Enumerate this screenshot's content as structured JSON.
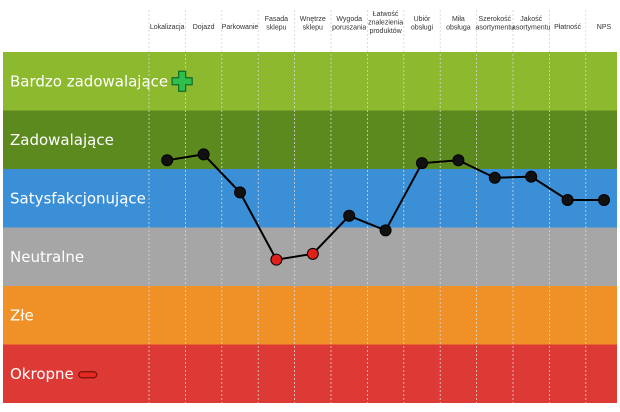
{
  "chart_data": {
    "type": "line",
    "columns": [
      [
        "Lokalizacja"
      ],
      [
        "Dojazd"
      ],
      [
        "Parkowanie"
      ],
      [
        "Fasada",
        "sklepu"
      ],
      [
        "Wnętrze",
        "sklepu"
      ],
      [
        "Wygoda",
        "poruszania"
      ],
      [
        "Łatwość",
        "znalezienia",
        "produktów"
      ],
      [
        "Ubiór",
        "obsługi"
      ],
      [
        "Miła",
        "obsługa"
      ],
      [
        "Szerokość",
        "asortymentu"
      ],
      [
        "Jakość",
        "asortymentu"
      ],
      [
        "Płatność"
      ],
      [
        "NPS"
      ]
    ],
    "bands": [
      {
        "label": "Bardzo zadowalające",
        "color": "#8db92e"
      },
      {
        "label": "Zadowalające",
        "color": "#5c8a1e"
      },
      {
        "label": "Satysfakcjonujące",
        "color": "#3b8fd6"
      },
      {
        "label": "Neutralne",
        "color": "#a6a6a6"
      },
      {
        "label": "Złe",
        "color": "#ef9127"
      },
      {
        "label": "Okropne",
        "color": "#de3a35"
      }
    ],
    "scale_note": "y scale: 0 = top of 'Okropne', 6 = top of 'Bardzo zadowalające'",
    "values": [
      4.15,
      4.25,
      3.6,
      2.45,
      2.55,
      3.2,
      2.95,
      4.1,
      4.15,
      3.85,
      3.87,
      3.47,
      3.47
    ],
    "point_colors": [
      "#111111",
      "#111111",
      "#111111",
      "#e0201b",
      "#e0201b",
      "#111111",
      "#111111",
      "#111111",
      "#111111",
      "#111111",
      "#111111",
      "#111111",
      "#111111"
    ],
    "ylim": [
      0,
      6
    ],
    "icons": {
      "top_band": "plus-icon",
      "bottom_band": "minus-icon"
    }
  }
}
